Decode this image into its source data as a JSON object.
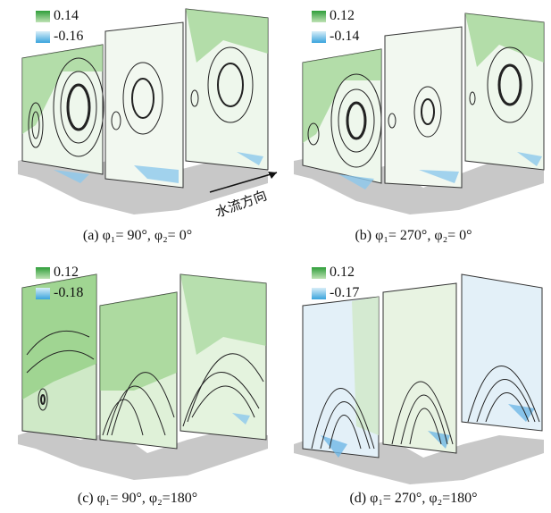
{
  "panels": [
    {
      "id": "a",
      "legend": {
        "max": "0.14",
        "min": "-0.16"
      },
      "caption": "(a) φ₁= 90°, φ₂= 0°",
      "tone": "green"
    },
    {
      "id": "b",
      "legend": {
        "max": "0.12",
        "min": "-0.14"
      },
      "caption": "(b) φ₁= 270°, φ₂= 0°",
      "tone": "green"
    },
    {
      "id": "c",
      "legend": {
        "max": "0.12",
        "min": "-0.18"
      },
      "caption": "(c) φ₁= 90°, φ₂=180°",
      "tone": "green"
    },
    {
      "id": "d",
      "legend": {
        "max": "0.12",
        "min": "-0.17"
      },
      "caption": "(d) φ₁= 270°, φ₂=180°",
      "tone": "blue"
    }
  ],
  "flow_direction_label": "水流方向",
  "colors": {
    "positive": "#2f9e3a",
    "negative": "#3aa4dd",
    "bed": "#c8c8c8"
  }
}
